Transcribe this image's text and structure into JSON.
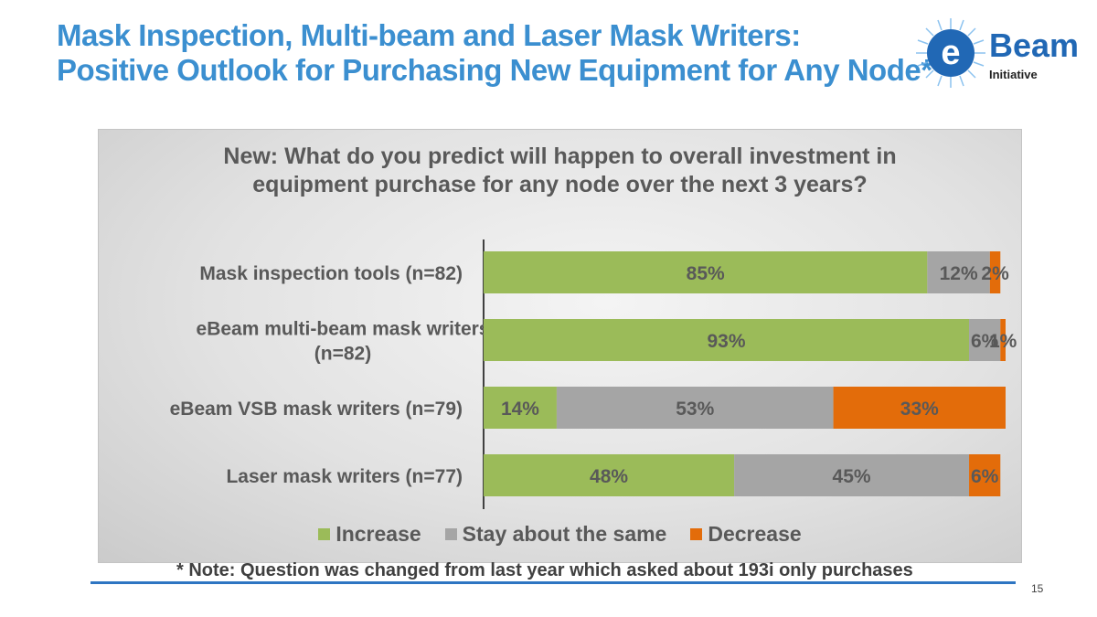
{
  "slide": {
    "title_line1": "Mask Inspection, Multi-beam and Laser Mask Writers:",
    "title_line2": "Positive Outlook for Purchasing New Equipment for Any Node*",
    "note": "* Note: Question was changed from last year which asked about 193i only purchases",
    "page_number": "15"
  },
  "logo": {
    "letter": "e",
    "word": "Beam",
    "sub": "Initiative",
    "icon": "ebeam-initiative-logo"
  },
  "chart_data": {
    "type": "bar",
    "orientation": "horizontal",
    "stacked": true,
    "title_line1": "New: What do you predict will happen to overall investment in",
    "title_line2": "equipment purchase for any node over the next 3 years?",
    "categories": [
      "Mask inspection tools (n=82)",
      "eBeam multi-beam mask writers (n=82)",
      "eBeam VSB mask writers (n=79)",
      "Laser mask writers (n=77)"
    ],
    "category_lines": [
      [
        "Mask inspection tools (n=82)"
      ],
      [
        "eBeam multi-beam mask writers",
        "(n=82)"
      ],
      [
        "eBeam VSB mask writers (n=79)"
      ],
      [
        "Laser mask writers (n=77)"
      ]
    ],
    "series": [
      {
        "name": "Increase",
        "color": "#9bbb59",
        "values": [
          85,
          93,
          14,
          48
        ],
        "labels": [
          "85%",
          "93%",
          "14%",
          "48%"
        ]
      },
      {
        "name": "Stay about the same",
        "color": "#a5a5a5",
        "values": [
          12,
          6,
          53,
          45
        ],
        "labels": [
          "12%",
          "6%",
          "53%",
          "45%"
        ]
      },
      {
        "name": "Decrease",
        "color": "#e36c0a",
        "values": [
          2,
          1,
          33,
          6
        ],
        "labels": [
          "2%",
          "1%",
          "33%",
          "6%"
        ]
      }
    ],
    "xlim": [
      0,
      100
    ],
    "grid": false,
    "legend_position": "bottom",
    "data_label_color": "#595959"
  }
}
